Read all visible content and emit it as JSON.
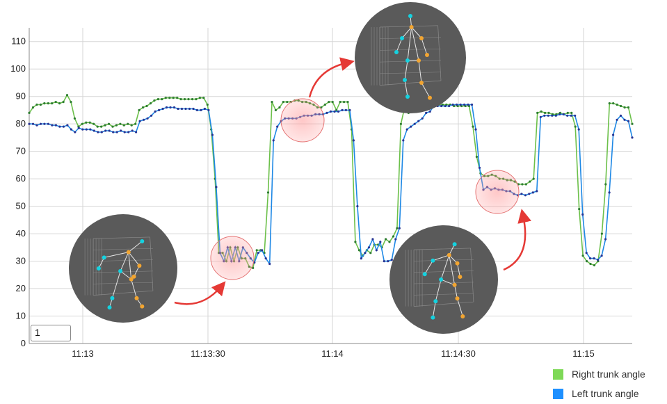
{
  "chart_data": {
    "type": "line",
    "ylim": [
      0,
      115
    ],
    "y_ticks": [
      0,
      10,
      20,
      30,
      40,
      50,
      60,
      70,
      80,
      90,
      100,
      110
    ],
    "x_ticks": [
      "11:13",
      "11:13:30",
      "11:14",
      "11:14:30",
      "11:15"
    ],
    "grid": true,
    "legend_position": "bottom-right",
    "series": [
      {
        "name": "Right trunk angle",
        "color": "#6cc04a",
        "marker_color": "#2e7d32",
        "values": [
          84,
          86,
          87,
          87,
          87.5,
          87.5,
          87.5,
          88,
          87.5,
          88,
          90.5,
          88,
          82,
          79,
          80,
          80.5,
          80.5,
          80,
          79,
          79,
          79.5,
          80,
          79,
          79.5,
          80,
          79.5,
          80,
          79.5,
          80,
          85,
          86,
          86.5,
          87.5,
          88.5,
          89,
          89,
          89.5,
          89.5,
          89.5,
          89.5,
          89,
          89,
          89,
          89,
          89,
          89.5,
          89.5,
          87,
          78,
          60,
          33,
          33,
          30,
          35,
          30,
          35,
          31,
          31,
          28,
          27.5,
          34,
          34,
          33,
          55,
          88,
          85,
          86,
          88,
          88,
          88,
          88.5,
          88.5,
          88,
          88,
          87.5,
          87,
          86,
          86,
          87,
          88,
          88,
          85,
          88,
          88,
          88,
          78,
          37,
          34,
          32,
          34,
          33,
          36,
          36,
          35,
          38,
          37,
          39,
          42,
          80,
          86,
          84,
          85,
          88,
          88,
          88,
          89,
          87,
          87,
          87,
          87,
          87,
          87,
          86.5,
          86.5,
          86.5,
          86.5,
          86.5,
          79,
          68,
          62,
          61,
          61,
          61.5,
          61,
          60,
          60,
          59.5,
          59.5,
          59,
          58,
          58,
          58,
          59,
          60,
          84,
          84.5,
          84,
          84,
          83.5,
          83.5,
          84,
          83.5,
          84,
          84,
          79,
          49,
          32,
          30,
          29,
          28.5,
          30,
          40,
          58,
          87.5,
          87.5,
          87,
          86.5,
          86,
          86,
          80
        ]
      },
      {
        "name": "Left trunk angle",
        "color": "#1e88e5",
        "marker_color": "#283593",
        "values": [
          80,
          80,
          79.5,
          80,
          80,
          80,
          79.5,
          79.5,
          79,
          79,
          79.5,
          78,
          77,
          78.5,
          78,
          78,
          78,
          77.5,
          77,
          77,
          77.5,
          77.5,
          77,
          77,
          77.5,
          77,
          77,
          77.5,
          77,
          81,
          81.5,
          82,
          83,
          84.5,
          85,
          85.5,
          86,
          86,
          86,
          85.5,
          85.5,
          85.5,
          85.5,
          85.5,
          85,
          85,
          85.5,
          85,
          76,
          57,
          33,
          30,
          35,
          30,
          35,
          30,
          35,
          33,
          31,
          29.5,
          33,
          34,
          31,
          29,
          74,
          79,
          81,
          82,
          82,
          82,
          82,
          82.5,
          83,
          83,
          83,
          83.5,
          83.5,
          83.5,
          84,
          84.5,
          84.5,
          84.5,
          85,
          85,
          85,
          74,
          50,
          31,
          33,
          35,
          38,
          34,
          37,
          30,
          30,
          30.5,
          38,
          42,
          74,
          78,
          79,
          80,
          81,
          82,
          84,
          84.5,
          86.5,
          86.5,
          86.5,
          86.5,
          86.5,
          87,
          87,
          87,
          87,
          87,
          87,
          78,
          64,
          56,
          57,
          56,
          56.5,
          56,
          56,
          55.5,
          55.5,
          54.5,
          54,
          54.5,
          54,
          54.5,
          55,
          55.5,
          82.5,
          83,
          83,
          83,
          83,
          83.5,
          83.5,
          83,
          83,
          83,
          78,
          47,
          33,
          31,
          31,
          30.5,
          32,
          38,
          55,
          76,
          81.5,
          83,
          81.5,
          81,
          75
        ]
      }
    ]
  },
  "ui": {
    "input_value": "1"
  },
  "insets": [
    {
      "name": "skeleton-inset-left",
      "accent": "#00c8d4"
    },
    {
      "name": "skeleton-inset-top",
      "accent": "#00c8d4"
    },
    {
      "name": "skeleton-inset-right",
      "accent": "#00c8d4"
    }
  ],
  "legend": {
    "items": [
      {
        "label": "Right trunk angle",
        "color": "#7ed957"
      },
      {
        "label": "Left trunk angle",
        "color": "#1e90ff"
      }
    ]
  }
}
